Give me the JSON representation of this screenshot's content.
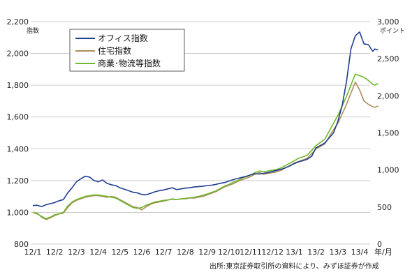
{
  "chart_data": {
    "type": "line",
    "title": "",
    "y_left": {
      "label": "指数",
      "ticks": [
        800,
        1000,
        1200,
        1400,
        1600,
        1800,
        2000,
        2200
      ],
      "tick_labels": [
        "800",
        "1,000",
        "1,200",
        "1,400",
        "1,600",
        "1,800",
        "2,000",
        "2,200"
      ],
      "ylim": [
        800,
        2200
      ]
    },
    "y_right": {
      "label": "ポイント",
      "ticks": [
        0,
        500,
        1000,
        1500,
        2000,
        2500,
        3000
      ],
      "tick_labels": [
        "0",
        "500",
        "1,000",
        "1,500",
        "2,000",
        "2,500",
        "3,000"
      ],
      "ylim": [
        0,
        3000
      ]
    },
    "x_ticks": [
      "12/1",
      "12/2",
      "12/3",
      "12/4",
      "12/5",
      "12/6",
      "12/7",
      "12/8",
      "12/9",
      "12/10",
      "12/11",
      "12/12",
      "13/1",
      "13/2",
      "13/3",
      "13/4"
    ],
    "x_unit": "年/月",
    "grid": "horizontal",
    "legend_position": "top-left",
    "series": [
      {
        "name": "オフィス指数",
        "color": "#1f3d8f",
        "axis": "right",
        "points": [
          [
            0,
            520
          ],
          [
            0.2,
            525
          ],
          [
            0.4,
            505
          ],
          [
            0.6,
            530
          ],
          [
            0.8,
            545
          ],
          [
            1.0,
            560
          ],
          [
            1.2,
            585
          ],
          [
            1.4,
            600
          ],
          [
            1.6,
            690
          ],
          [
            1.8,
            760
          ],
          [
            2.0,
            840
          ],
          [
            2.2,
            880
          ],
          [
            2.4,
            915
          ],
          [
            2.6,
            905
          ],
          [
            2.8,
            860
          ],
          [
            3.0,
            840
          ],
          [
            3.2,
            865
          ],
          [
            3.4,
            820
          ],
          [
            3.6,
            800
          ],
          [
            3.8,
            790
          ],
          [
            4.0,
            760
          ],
          [
            4.2,
            740
          ],
          [
            4.4,
            720
          ],
          [
            4.6,
            700
          ],
          [
            4.8,
            690
          ],
          [
            5.0,
            670
          ],
          [
            5.2,
            665
          ],
          [
            5.4,
            685
          ],
          [
            5.6,
            705
          ],
          [
            5.8,
            720
          ],
          [
            6.0,
            730
          ],
          [
            6.2,
            745
          ],
          [
            6.4,
            760
          ],
          [
            6.6,
            735
          ],
          [
            6.8,
            745
          ],
          [
            7.0,
            755
          ],
          [
            7.2,
            760
          ],
          [
            7.4,
            770
          ],
          [
            7.6,
            775
          ],
          [
            7.8,
            780
          ],
          [
            8.0,
            790
          ],
          [
            8.2,
            795
          ],
          [
            8.4,
            805
          ],
          [
            8.6,
            820
          ],
          [
            8.8,
            830
          ],
          [
            9.0,
            850
          ],
          [
            9.2,
            870
          ],
          [
            9.4,
            885
          ],
          [
            9.6,
            900
          ],
          [
            9.8,
            915
          ],
          [
            10.0,
            935
          ],
          [
            10.2,
            950
          ],
          [
            10.4,
            945
          ],
          [
            10.6,
            955
          ],
          [
            10.8,
            965
          ],
          [
            11.0,
            980
          ],
          [
            11.2,
            995
          ],
          [
            11.4,
            1010
          ],
          [
            11.6,
            1030
          ],
          [
            11.8,
            1055
          ],
          [
            12.0,
            1085
          ],
          [
            12.2,
            1110
          ],
          [
            12.4,
            1125
          ],
          [
            12.6,
            1145
          ],
          [
            12.8,
            1185
          ],
          [
            13.0,
            1300
          ],
          [
            13.2,
            1330
          ],
          [
            13.4,
            1365
          ],
          [
            13.6,
            1430
          ],
          [
            13.8,
            1500
          ],
          [
            14.0,
            1655
          ],
          [
            14.2,
            1870
          ],
          [
            14.4,
            2200
          ],
          [
            14.6,
            2630
          ],
          [
            14.8,
            2810
          ],
          [
            15.0,
            2860
          ],
          [
            15.2,
            2700
          ],
          [
            15.4,
            2690
          ],
          [
            15.6,
            2600
          ],
          [
            15.7,
            2630
          ],
          [
            15.85,
            2618
          ]
        ]
      },
      {
        "name": "住宅指数",
        "color": "#b08a5a",
        "axis": "left",
        "points": [
          [
            0,
            1000
          ],
          [
            0.2,
            995
          ],
          [
            0.4,
            970
          ],
          [
            0.6,
            955
          ],
          [
            0.8,
            965
          ],
          [
            1.0,
            980
          ],
          [
            1.2,
            990
          ],
          [
            1.4,
            995
          ],
          [
            1.6,
            1030
          ],
          [
            1.8,
            1060
          ],
          [
            2.0,
            1075
          ],
          [
            2.2,
            1085
          ],
          [
            2.4,
            1095
          ],
          [
            2.6,
            1100
          ],
          [
            2.8,
            1105
          ],
          [
            3.0,
            1105
          ],
          [
            3.2,
            1100
          ],
          [
            3.4,
            1095
          ],
          [
            3.6,
            1100
          ],
          [
            3.8,
            1095
          ],
          [
            4.0,
            1080
          ],
          [
            4.2,
            1065
          ],
          [
            4.4,
            1050
          ],
          [
            4.6,
            1035
          ],
          [
            4.8,
            1030
          ],
          [
            5.0,
            1015
          ],
          [
            5.2,
            1035
          ],
          [
            5.4,
            1050
          ],
          [
            5.6,
            1060
          ],
          [
            5.8,
            1065
          ],
          [
            6.0,
            1070
          ],
          [
            6.2,
            1078
          ],
          [
            6.4,
            1085
          ],
          [
            6.6,
            1080
          ],
          [
            6.8,
            1085
          ],
          [
            7.0,
            1085
          ],
          [
            7.2,
            1090
          ],
          [
            7.4,
            1090
          ],
          [
            7.6,
            1095
          ],
          [
            7.8,
            1100
          ],
          [
            8.0,
            1110
          ],
          [
            8.2,
            1120
          ],
          [
            8.4,
            1130
          ],
          [
            8.6,
            1145
          ],
          [
            8.8,
            1160
          ],
          [
            9.0,
            1170
          ],
          [
            9.2,
            1180
          ],
          [
            9.4,
            1195
          ],
          [
            9.6,
            1205
          ],
          [
            9.8,
            1215
          ],
          [
            10.0,
            1225
          ],
          [
            10.2,
            1240
          ],
          [
            10.4,
            1250
          ],
          [
            10.6,
            1240
          ],
          [
            10.8,
            1245
          ],
          [
            11.0,
            1250
          ],
          [
            11.2,
            1255
          ],
          [
            11.4,
            1265
          ],
          [
            11.6,
            1280
          ],
          [
            11.8,
            1295
          ],
          [
            12.0,
            1310
          ],
          [
            12.2,
            1320
          ],
          [
            12.4,
            1330
          ],
          [
            12.6,
            1340
          ],
          [
            12.8,
            1370
          ],
          [
            13.0,
            1400
          ],
          [
            13.2,
            1415
          ],
          [
            13.4,
            1430
          ],
          [
            13.6,
            1475
          ],
          [
            13.8,
            1520
          ],
          [
            14.0,
            1560
          ],
          [
            14.2,
            1620
          ],
          [
            14.4,
            1680
          ],
          [
            14.6,
            1750
          ],
          [
            14.8,
            1820
          ],
          [
            15.0,
            1770
          ],
          [
            15.2,
            1700
          ],
          [
            15.4,
            1680
          ],
          [
            15.6,
            1665
          ],
          [
            15.7,
            1660
          ],
          [
            15.85,
            1670
          ]
        ]
      },
      {
        "name": "商業･物流等指数",
        "color": "#6db82c",
        "axis": "left",
        "points": [
          [
            0,
            1000
          ],
          [
            0.2,
            990
          ],
          [
            0.4,
            975
          ],
          [
            0.6,
            960
          ],
          [
            0.8,
            970
          ],
          [
            1.0,
            985
          ],
          [
            1.2,
            990
          ],
          [
            1.4,
            1000
          ],
          [
            1.6,
            1040
          ],
          [
            1.8,
            1065
          ],
          [
            2.0,
            1080
          ],
          [
            2.2,
            1090
          ],
          [
            2.4,
            1100
          ],
          [
            2.6,
            1105
          ],
          [
            2.8,
            1110
          ],
          [
            3.0,
            1110
          ],
          [
            3.2,
            1105
          ],
          [
            3.4,
            1100
          ],
          [
            3.6,
            1095
          ],
          [
            3.8,
            1090
          ],
          [
            4.0,
            1075
          ],
          [
            4.2,
            1060
          ],
          [
            4.4,
            1045
          ],
          [
            4.6,
            1030
          ],
          [
            4.8,
            1025
          ],
          [
            5.0,
            1030
          ],
          [
            5.2,
            1045
          ],
          [
            5.4,
            1055
          ],
          [
            5.6,
            1065
          ],
          [
            5.8,
            1070
          ],
          [
            6.0,
            1075
          ],
          [
            6.2,
            1078
          ],
          [
            6.4,
            1082
          ],
          [
            6.6,
            1080
          ],
          [
            6.8,
            1085
          ],
          [
            7.0,
            1088
          ],
          [
            7.2,
            1092
          ],
          [
            7.4,
            1095
          ],
          [
            7.6,
            1100
          ],
          [
            7.8,
            1108
          ],
          [
            8.0,
            1115
          ],
          [
            8.2,
            1125
          ],
          [
            8.4,
            1135
          ],
          [
            8.6,
            1150
          ],
          [
            8.8,
            1165
          ],
          [
            9.0,
            1175
          ],
          [
            9.2,
            1190
          ],
          [
            9.4,
            1200
          ],
          [
            9.6,
            1215
          ],
          [
            9.8,
            1225
          ],
          [
            10.0,
            1235
          ],
          [
            10.2,
            1250
          ],
          [
            10.4,
            1260
          ],
          [
            10.6,
            1255
          ],
          [
            10.8,
            1260
          ],
          [
            11.0,
            1265
          ],
          [
            11.2,
            1270
          ],
          [
            11.4,
            1280
          ],
          [
            11.6,
            1295
          ],
          [
            11.8,
            1310
          ],
          [
            12.0,
            1325
          ],
          [
            12.2,
            1340
          ],
          [
            12.4,
            1350
          ],
          [
            12.6,
            1360
          ],
          [
            12.8,
            1390
          ],
          [
            13.0,
            1420
          ],
          [
            13.2,
            1440
          ],
          [
            13.4,
            1460
          ],
          [
            13.6,
            1510
          ],
          [
            13.8,
            1560
          ],
          [
            14.0,
            1610
          ],
          [
            14.2,
            1670
          ],
          [
            14.4,
            1730
          ],
          [
            14.6,
            1800
          ],
          [
            14.8,
            1870
          ],
          [
            15.0,
            1860
          ],
          [
            15.2,
            1850
          ],
          [
            15.4,
            1830
          ],
          [
            15.6,
            1805
          ],
          [
            15.7,
            1800
          ],
          [
            15.85,
            1810
          ]
        ]
      }
    ]
  },
  "legend": {
    "items": [
      {
        "label": "オフィス指数",
        "color": "#1f3d8f"
      },
      {
        "label": "住宅指数",
        "color": "#b08a5a"
      },
      {
        "label": "商業･物流等指数",
        "color": "#6db82c"
      }
    ]
  },
  "source_note": "出所:東京証券取引所の資料により、みずほ証券が作成"
}
